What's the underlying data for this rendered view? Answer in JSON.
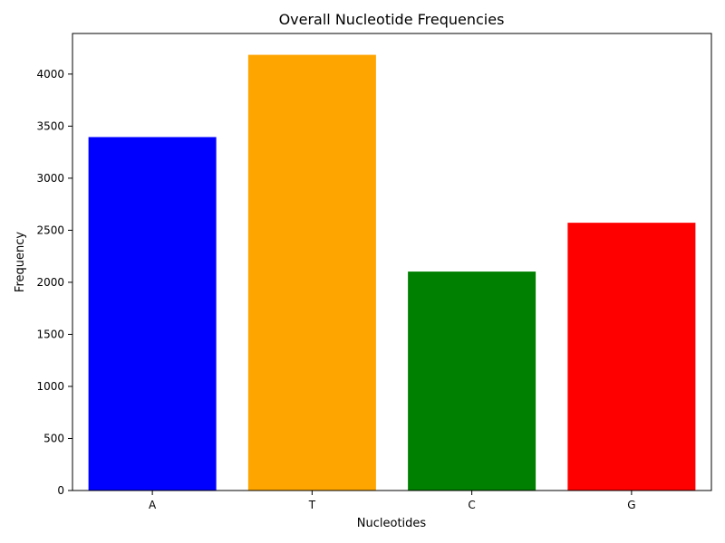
{
  "chart_data": {
    "type": "bar",
    "title": "Overall Nucleotide Frequencies",
    "xlabel": "Nucleotides",
    "ylabel": "Frequency",
    "categories": [
      "A",
      "T",
      "C",
      "G"
    ],
    "values": [
      3395,
      4185,
      2103,
      2572
    ],
    "colors": [
      "#0000ff",
      "#ffa500",
      "#008000",
      "#ff0000"
    ],
    "ylim": [
      0,
      4390
    ],
    "yticks": [
      0,
      500,
      1000,
      1500,
      2000,
      2500,
      3000,
      3500,
      4000
    ],
    "grid": false,
    "legend": "none"
  }
}
